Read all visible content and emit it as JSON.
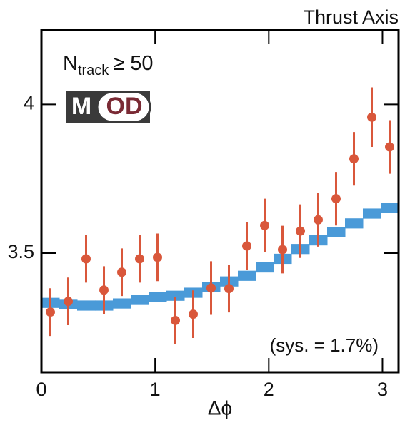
{
  "chart_data": {
    "type": "histogram",
    "title": "Thrust Axis",
    "xlabel": "Δϕ",
    "annotation": {
      "main": "N",
      "sub": "track",
      "rest": "≥ 50"
    },
    "logo": [
      "M",
      "OD"
    ],
    "note": "(sys. = 1.7%)",
    "xlim": [
      0,
      3.1416
    ],
    "ylim": [
      3.1,
      4.25
    ],
    "xticks": [
      0,
      1,
      2,
      3
    ],
    "yticks": [
      3.5,
      4
    ],
    "bins": [
      0,
      0.1571,
      0.3142,
      0.4712,
      0.6283,
      0.7854,
      0.9425,
      1.0996,
      1.2566,
      1.4137,
      1.5708,
      1.7279,
      1.885,
      2.042,
      2.1991,
      2.3562,
      2.5133,
      2.6704,
      2.8274,
      2.9845,
      3.1416
    ],
    "band": {
      "color": "#4a9ad8",
      "values": [
        3.333,
        3.329,
        3.324,
        3.324,
        3.331,
        3.343,
        3.352,
        3.357,
        3.367,
        3.386,
        3.405,
        3.424,
        3.452,
        3.481,
        3.514,
        3.543,
        3.571,
        3.6,
        3.633,
        3.652
      ],
      "errors": [
        0.017,
        0.017,
        0.017,
        0.017,
        0.017,
        0.017,
        0.017,
        0.017,
        0.017,
        0.017,
        0.017,
        0.017,
        0.017,
        0.017,
        0.017,
        0.017,
        0.017,
        0.017,
        0.017,
        0.017
      ]
    },
    "points": {
      "color": "#d9573b",
      "x": [
        0.0785,
        0.2356,
        0.3927,
        0.5498,
        0.7069,
        0.864,
        1.021,
        1.1781,
        1.3352,
        1.4923,
        1.6493,
        1.8064,
        1.9635,
        2.1206,
        2.2777,
        2.4347,
        2.5918,
        2.7489,
        2.906,
        3.0631
      ],
      "values": [
        3.302,
        3.338,
        3.481,
        3.376,
        3.436,
        3.481,
        3.486,
        3.274,
        3.295,
        3.383,
        3.381,
        3.524,
        3.593,
        3.512,
        3.574,
        3.612,
        3.683,
        3.817,
        3.957,
        3.857
      ],
      "errors": [
        0.08,
        0.08,
        0.08,
        0.08,
        0.08,
        0.08,
        0.08,
        0.08,
        0.08,
        0.09,
        0.08,
        0.08,
        0.09,
        0.08,
        0.09,
        0.09,
        0.09,
        0.09,
        0.1,
        0.09
      ]
    }
  }
}
